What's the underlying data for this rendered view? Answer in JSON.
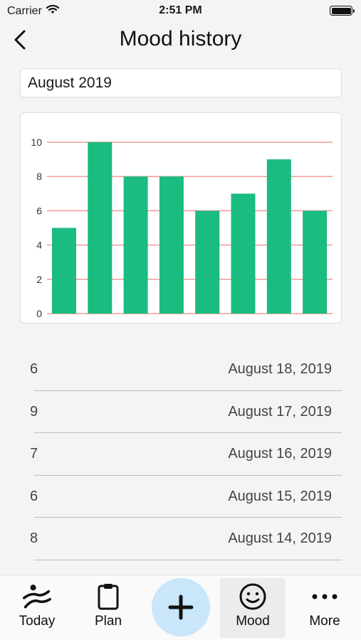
{
  "status_bar": {
    "carrier": "Carrier",
    "time": "2:51 PM"
  },
  "nav": {
    "title": "Mood history"
  },
  "month_selector": {
    "value": "August 2019"
  },
  "colors": {
    "bar": "#1abc80",
    "gridline": "#f19a9a",
    "add_button": "#c9e6fb"
  },
  "chart_data": {
    "type": "bar",
    "categories": [
      "",
      "",
      "",
      "",
      "",
      "",
      "",
      ""
    ],
    "values": [
      5,
      10,
      8,
      8,
      6,
      7,
      9,
      6
    ],
    "ylim": [
      0,
      10
    ],
    "yticks": [
      "0",
      "2",
      "4",
      "6",
      "8",
      "10"
    ],
    "grid": true,
    "title": "",
    "xlabel": "",
    "ylabel": ""
  },
  "history": [
    {
      "value": "6",
      "date": "August 18, 2019"
    },
    {
      "value": "9",
      "date": "August 17, 2019"
    },
    {
      "value": "7",
      "date": "August 16, 2019"
    },
    {
      "value": "6",
      "date": "August 15, 2019"
    },
    {
      "value": "8",
      "date": "August 14, 2019"
    }
  ],
  "tabs": [
    {
      "label": "Today",
      "icon": "runner-icon"
    },
    {
      "label": "Plan",
      "icon": "clipboard-icon"
    },
    {
      "label": "Mood",
      "icon": "smiley-icon",
      "selected": true
    },
    {
      "label": "More",
      "icon": "ellipsis-icon"
    }
  ],
  "add_button": {
    "icon": "plus-icon"
  }
}
